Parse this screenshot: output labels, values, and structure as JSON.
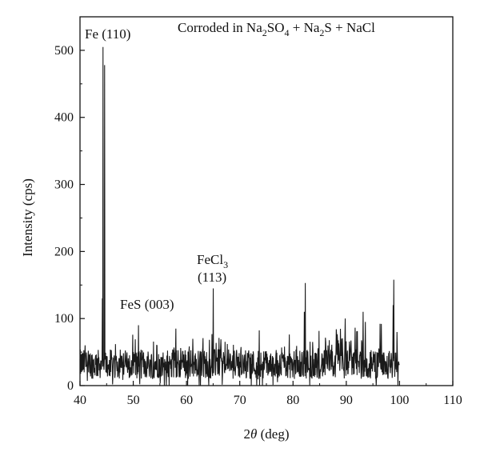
{
  "chart_data": {
    "type": "line",
    "title": "Corroded in Na₂SO₄ + Na₂S + NaCl",
    "title_parts": {
      "p1": "Corroded in Na",
      "s1": "2",
      "p2": "SO",
      "s2": "4",
      "p3": " + Na",
      "s3": "2",
      "p4": "S + NaCl"
    },
    "xlabel": "2θ (deg)",
    "xlabel_parts": {
      "num": "2",
      "theta": "θ",
      "unit": " (deg)"
    },
    "ylabel": "Intensity (cps)",
    "xlim": [
      40,
      110
    ],
    "ylim": [
      0,
      550
    ],
    "xticks": [
      40,
      50,
      60,
      70,
      80,
      90,
      100,
      110
    ],
    "yticks": [
      0,
      100,
      200,
      300,
      400,
      500
    ],
    "grid": false,
    "line_color": "#1a1a1a",
    "annotations": {
      "fe": {
        "text": "Fe (110)",
        "x": 44.5,
        "y": 505
      },
      "fes": {
        "text": "FeS (003)",
        "x": 51,
        "y": 90
      },
      "fecl3": {
        "line1_base": "FeCl",
        "line1_sub": "3",
        "line2": "(113)",
        "x": 65,
        "y": 145
      }
    },
    "series": [
      {
        "noise_level": 40,
        "x_range": [
          40,
          100
        ],
        "peaks": [
          {
            "x": 44.3,
            "y": 505
          },
          {
            "x": 44.6,
            "y": 478
          },
          {
            "x": 44.2,
            "y": 130
          },
          {
            "x": 51.0,
            "y": 90
          },
          {
            "x": 65.0,
            "y": 145
          },
          {
            "x": 82.3,
            "y": 153
          },
          {
            "x": 82.1,
            "y": 110
          },
          {
            "x": 98.9,
            "y": 158
          },
          {
            "x": 98.8,
            "y": 120
          },
          {
            "x": 89.8,
            "y": 100
          },
          {
            "x": 93.6,
            "y": 95
          },
          {
            "x": 96.6,
            "y": 92
          },
          {
            "x": 58.0,
            "y": 85
          },
          {
            "x": 99.5,
            "y": 80
          }
        ]
      }
    ]
  }
}
